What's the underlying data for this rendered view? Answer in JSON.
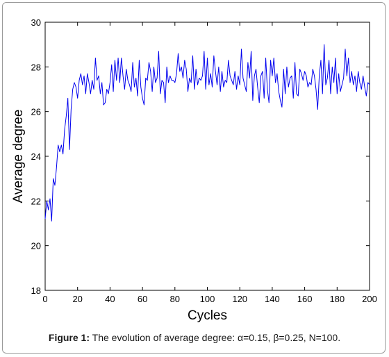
{
  "chart_data": {
    "type": "line",
    "xlabel": "Cycles",
    "ylabel": "Average degree",
    "xlim": [
      0,
      200
    ],
    "ylim": [
      18,
      30
    ],
    "xticks": [
      0,
      20,
      40,
      60,
      80,
      100,
      120,
      140,
      160,
      180,
      200
    ],
    "yticks": [
      18,
      20,
      22,
      24,
      26,
      28,
      30
    ],
    "grid": false,
    "line_color": "#0000ee",
    "series": [
      {
        "x": [
          0,
          1,
          2,
          3,
          4,
          5,
          6,
          7,
          8,
          9,
          10,
          11,
          12,
          13,
          14,
          15,
          16,
          17,
          18,
          19,
          20,
          21,
          22,
          23,
          24,
          25,
          26,
          27,
          28,
          29,
          30,
          31,
          32,
          33,
          34,
          35,
          36,
          37,
          38,
          39,
          40,
          41,
          42,
          43,
          44,
          45,
          46,
          47,
          48,
          49,
          50,
          51,
          52,
          53,
          54,
          55,
          56,
          57,
          58,
          59,
          60,
          61,
          62,
          63,
          64,
          65,
          66,
          67,
          68,
          69,
          70,
          71,
          72,
          73,
          74,
          75,
          76,
          77,
          78,
          79,
          80,
          81,
          82,
          83,
          84,
          85,
          86,
          87,
          88,
          89,
          90,
          91,
          92,
          93,
          94,
          95,
          96,
          97,
          98,
          99,
          100,
          101,
          102,
          103,
          104,
          105,
          106,
          107,
          108,
          109,
          110,
          111,
          112,
          113,
          114,
          115,
          116,
          117,
          118,
          119,
          120,
          121,
          122,
          123,
          124,
          125,
          126,
          127,
          128,
          129,
          130,
          131,
          132,
          133,
          134,
          135,
          136,
          137,
          138,
          139,
          140,
          141,
          142,
          143,
          144,
          145,
          146,
          147,
          148,
          149,
          150,
          151,
          152,
          153,
          154,
          155,
          156,
          157,
          158,
          159,
          160,
          161,
          162,
          163,
          164,
          165,
          166,
          167,
          168,
          169,
          170,
          171,
          172,
          173,
          174,
          175,
          176,
          177,
          178,
          179,
          180,
          181,
          182,
          183,
          184,
          185,
          186,
          187,
          188,
          189,
          190,
          191,
          192,
          193,
          194,
          195,
          196,
          197,
          198,
          199,
          200
        ],
        "values": [
          21.2,
          22.0,
          21.6,
          22.1,
          21.1,
          23.0,
          22.7,
          23.5,
          24.5,
          24.2,
          24.5,
          24.1,
          25.2,
          25.8,
          26.6,
          24.3,
          26.1,
          27.0,
          27.3,
          27.1,
          26.6,
          27.4,
          27.7,
          27.2,
          27.6,
          26.8,
          27.7,
          27.3,
          26.8,
          27.4,
          27.0,
          28.4,
          27.4,
          27.6,
          26.8,
          27.3,
          26.3,
          26.4,
          27.0,
          26.8,
          27.3,
          28.1,
          26.9,
          28.3,
          27.4,
          28.4,
          27.3,
          28.4,
          27.6,
          27.0,
          27.9,
          27.4,
          27.2,
          26.9,
          28.2,
          27.1,
          27.5,
          26.7,
          28.3,
          27.1,
          26.6,
          26.3,
          27.5,
          27.4,
          28.2,
          27.8,
          26.9,
          28.0,
          27.3,
          27.5,
          28.7,
          26.8,
          27.4,
          27.3,
          26.4,
          28.0,
          27.3,
          27.6,
          27.4,
          27.4,
          27.3,
          27.7,
          28.6,
          27.8,
          28.0,
          27.5,
          28.3,
          27.9,
          26.9,
          27.5,
          27.3,
          28.5,
          27.0,
          27.9,
          27.2,
          27.5,
          27.4,
          27.6,
          28.7,
          27.0,
          28.4,
          27.2,
          27.7,
          27.1,
          28.5,
          27.8,
          27.2,
          28.0,
          26.9,
          27.8,
          27.1,
          27.4,
          27.3,
          28.3,
          27.6,
          27.4,
          27.2,
          27.8,
          27.0,
          27.6,
          27.2,
          28.8,
          27.5,
          27.2,
          26.9,
          28.2,
          27.5,
          28.7,
          26.5,
          27.6,
          27.9,
          27.1,
          26.4,
          27.6,
          27.8,
          26.6,
          28.4,
          27.0,
          26.4,
          28.3,
          27.6,
          28.4,
          27.3,
          27.7,
          26.9,
          26.5,
          26.2,
          27.9,
          26.8,
          28.0,
          27.1,
          27.5,
          27.6,
          26.6,
          28.2,
          26.8,
          26.7,
          27.9,
          27.7,
          27.4,
          27.8,
          27.6,
          27.1,
          27.3,
          27.2,
          27.9,
          27.6,
          27.0,
          26.1,
          27.6,
          28.3,
          26.8,
          29.0,
          27.2,
          27.5,
          28.3,
          26.8,
          28.0,
          27.3,
          28.4,
          26.8,
          27.7,
          26.9,
          27.2,
          27.5,
          28.8,
          27.6,
          28.4,
          27.3,
          27.8,
          27.2,
          27.6,
          26.9,
          27.8,
          27.3,
          27.0,
          27.6,
          27.1,
          26.7,
          27.3,
          27.2
        ]
      }
    ]
  },
  "caption": {
    "label": "Figure 1:",
    "text": "The evolution of average degree: α=0.15, β=0.25, N=100."
  }
}
